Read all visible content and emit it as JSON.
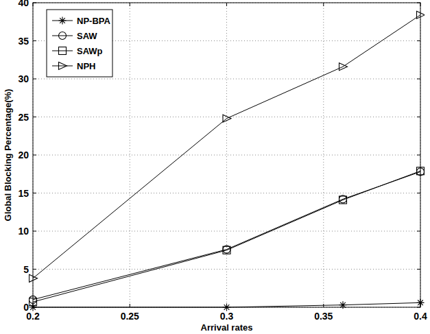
{
  "chart_data": {
    "type": "line",
    "x_label": "Arrival rates",
    "y_label": "Global Blocking Percentage(%)",
    "x": [
      0.2,
      0.3,
      0.36,
      0.4
    ],
    "series": [
      {
        "name": "NP-BPA",
        "color": "#000000",
        "marker": "star",
        "values": [
          0,
          0,
          0.3,
          0.6
        ]
      },
      {
        "name": "SAW",
        "color": "#000000",
        "marker": "circle",
        "values": [
          1.0,
          7.6,
          14.2,
          17.8
        ]
      },
      {
        "name": "SAWp",
        "color": "#000000",
        "marker": "square",
        "values": [
          0.7,
          7.5,
          14.1,
          17.9
        ]
      },
      {
        "name": "NPH",
        "color": "#000000",
        "marker": "triangle-right",
        "values": [
          3.8,
          24.8,
          31.6,
          38.4
        ]
      }
    ],
    "xlim": [
      0.2,
      0.4
    ],
    "xticks": [
      0.2,
      0.25,
      0.3,
      0.35,
      0.4
    ],
    "ylim": [
      0,
      40
    ],
    "yticks": [
      0,
      5,
      10,
      15,
      20,
      25,
      30,
      35,
      40
    ],
    "grid": true,
    "legend": "upper-left"
  }
}
